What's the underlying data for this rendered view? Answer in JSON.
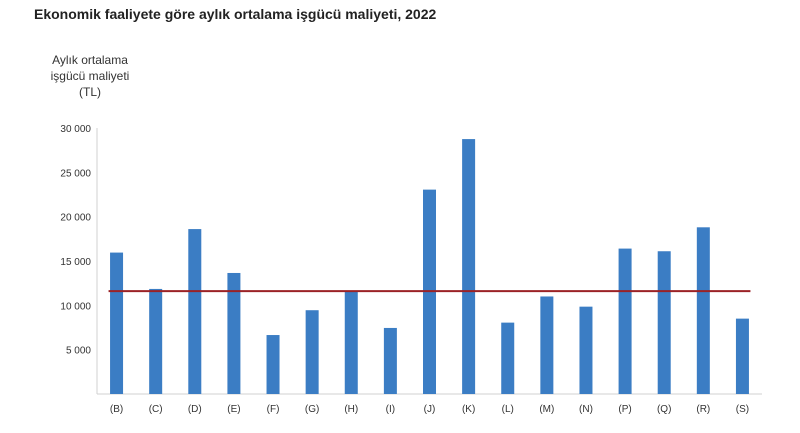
{
  "title": "Ekonomik faaliyete göre aylık ortalama işgücü maliyeti, 2022",
  "chart_data": {
    "type": "bar",
    "title": "Ekonomik faaliyete göre aylık ortalama işgücü maliyeti, 2022",
    "ylabel_lines": [
      "Aylık ortalama",
      "işgücü maliyeti",
      "(TL)"
    ],
    "xlabel": "",
    "categories": [
      "(B)",
      "(C)",
      "(D)",
      "(E)",
      "(F)",
      "(G)",
      "(H)",
      "(I)",
      "(J)",
      "(K)",
      "(L)",
      "(M)",
      "(N)",
      "(P)",
      "(Q)",
      "(R)",
      "(S)"
    ],
    "values": [
      15950,
      11850,
      18600,
      13650,
      6650,
      9450,
      11650,
      7450,
      23050,
      28750,
      8050,
      11000,
      9850,
      16400,
      16100,
      18800,
      8500
    ],
    "reference_line": 11600,
    "ylim": [
      0,
      30000
    ],
    "yticks": [
      5000,
      10000,
      15000,
      20000,
      25000,
      30000
    ],
    "ytick_labels": [
      "5 000",
      "10 000",
      "15 000",
      "20 000",
      "25 000",
      "30 000"
    ],
    "grid": false,
    "legend": "none",
    "bar_color": "#3b7dc4",
    "line_color": "#9b2226"
  }
}
